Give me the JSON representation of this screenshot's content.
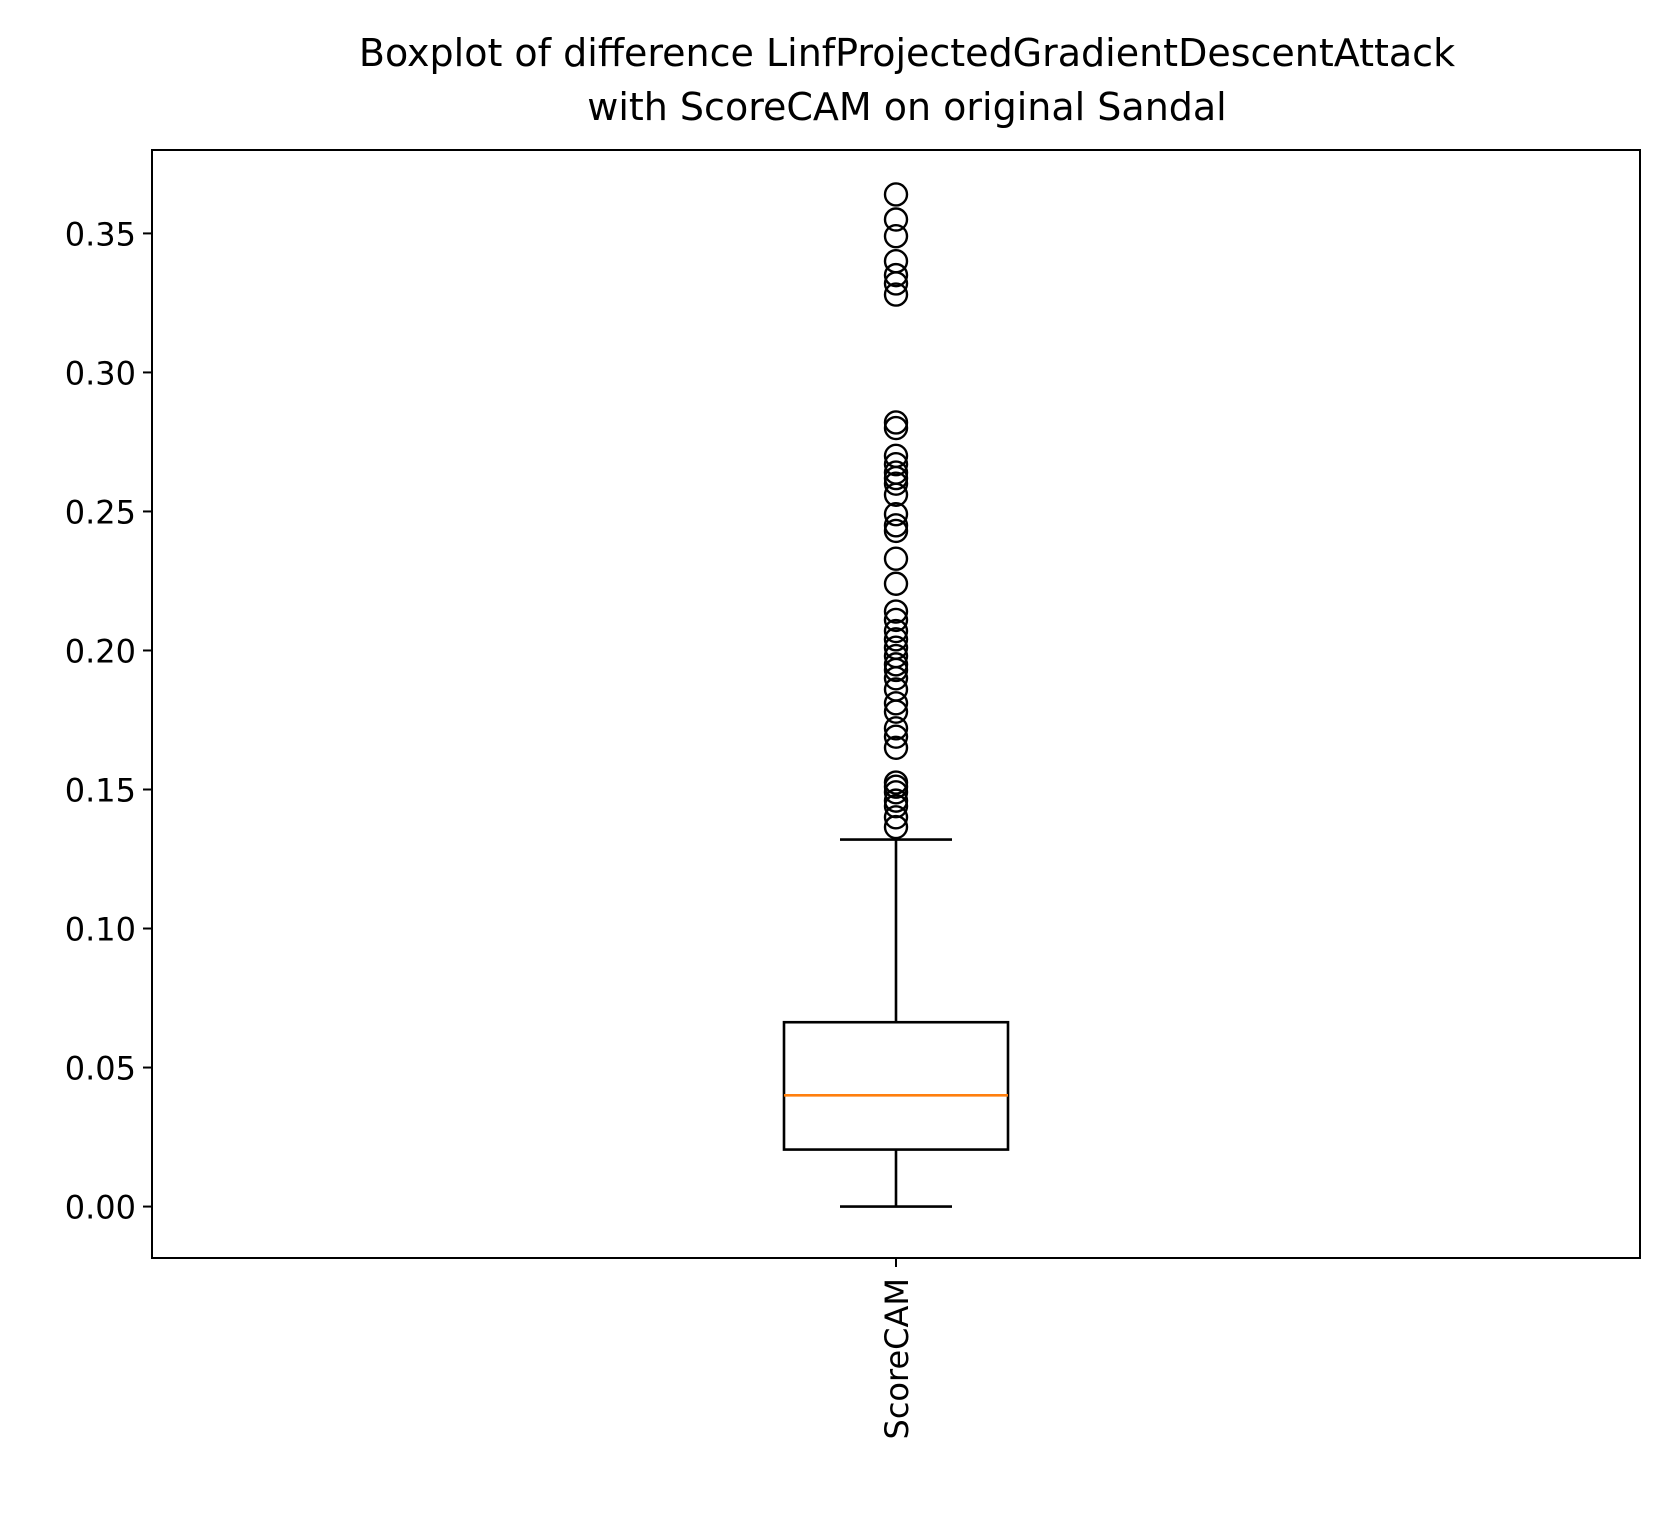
{
  "chart_data": {
    "type": "box",
    "title_lines": [
      "Boxplot of difference LinfProjectedGradientDescentAttack",
      "with ScoreCAM on original Sandal"
    ],
    "xlabel": "",
    "ylabel": "",
    "ylim": [
      -0.0185,
      0.38
    ],
    "y_ticks": [
      {
        "value": 0.0,
        "label": "0.00"
      },
      {
        "value": 0.05,
        "label": "0.05"
      },
      {
        "value": 0.1,
        "label": "0.10"
      },
      {
        "value": 0.15,
        "label": "0.15"
      },
      {
        "value": 0.2,
        "label": "0.20"
      },
      {
        "value": 0.25,
        "label": "0.25"
      },
      {
        "value": 0.3,
        "label": "0.30"
      },
      {
        "value": 0.35,
        "label": "0.35"
      }
    ],
    "categories": [
      "ScoreCAM"
    ],
    "x_tick_rotation": "vertical",
    "grid": false,
    "boxes": [
      {
        "name": "ScoreCAM",
        "whisker_low": 0.0,
        "q1": 0.0205,
        "median": 0.04,
        "q3": 0.0663,
        "whisker_high": 0.132,
        "outliers": [
          0.1365,
          0.14,
          0.144,
          0.146,
          0.149,
          0.151,
          0.1525,
          0.165,
          0.169,
          0.172,
          0.178,
          0.181,
          0.186,
          0.19,
          0.193,
          0.195,
          0.198,
          0.201,
          0.204,
          0.207,
          0.211,
          0.214,
          0.224,
          0.233,
          0.243,
          0.245,
          0.249,
          0.256,
          0.26,
          0.262,
          0.264,
          0.267,
          0.27,
          0.28,
          0.282,
          0.328,
          0.332,
          0.335,
          0.34,
          0.349,
          0.355,
          0.364
        ]
      }
    ],
    "colors": {
      "box": "#000000",
      "median": "#ff7f0e",
      "outlier_edge": "#000000",
      "background": "#ffffff"
    }
  }
}
